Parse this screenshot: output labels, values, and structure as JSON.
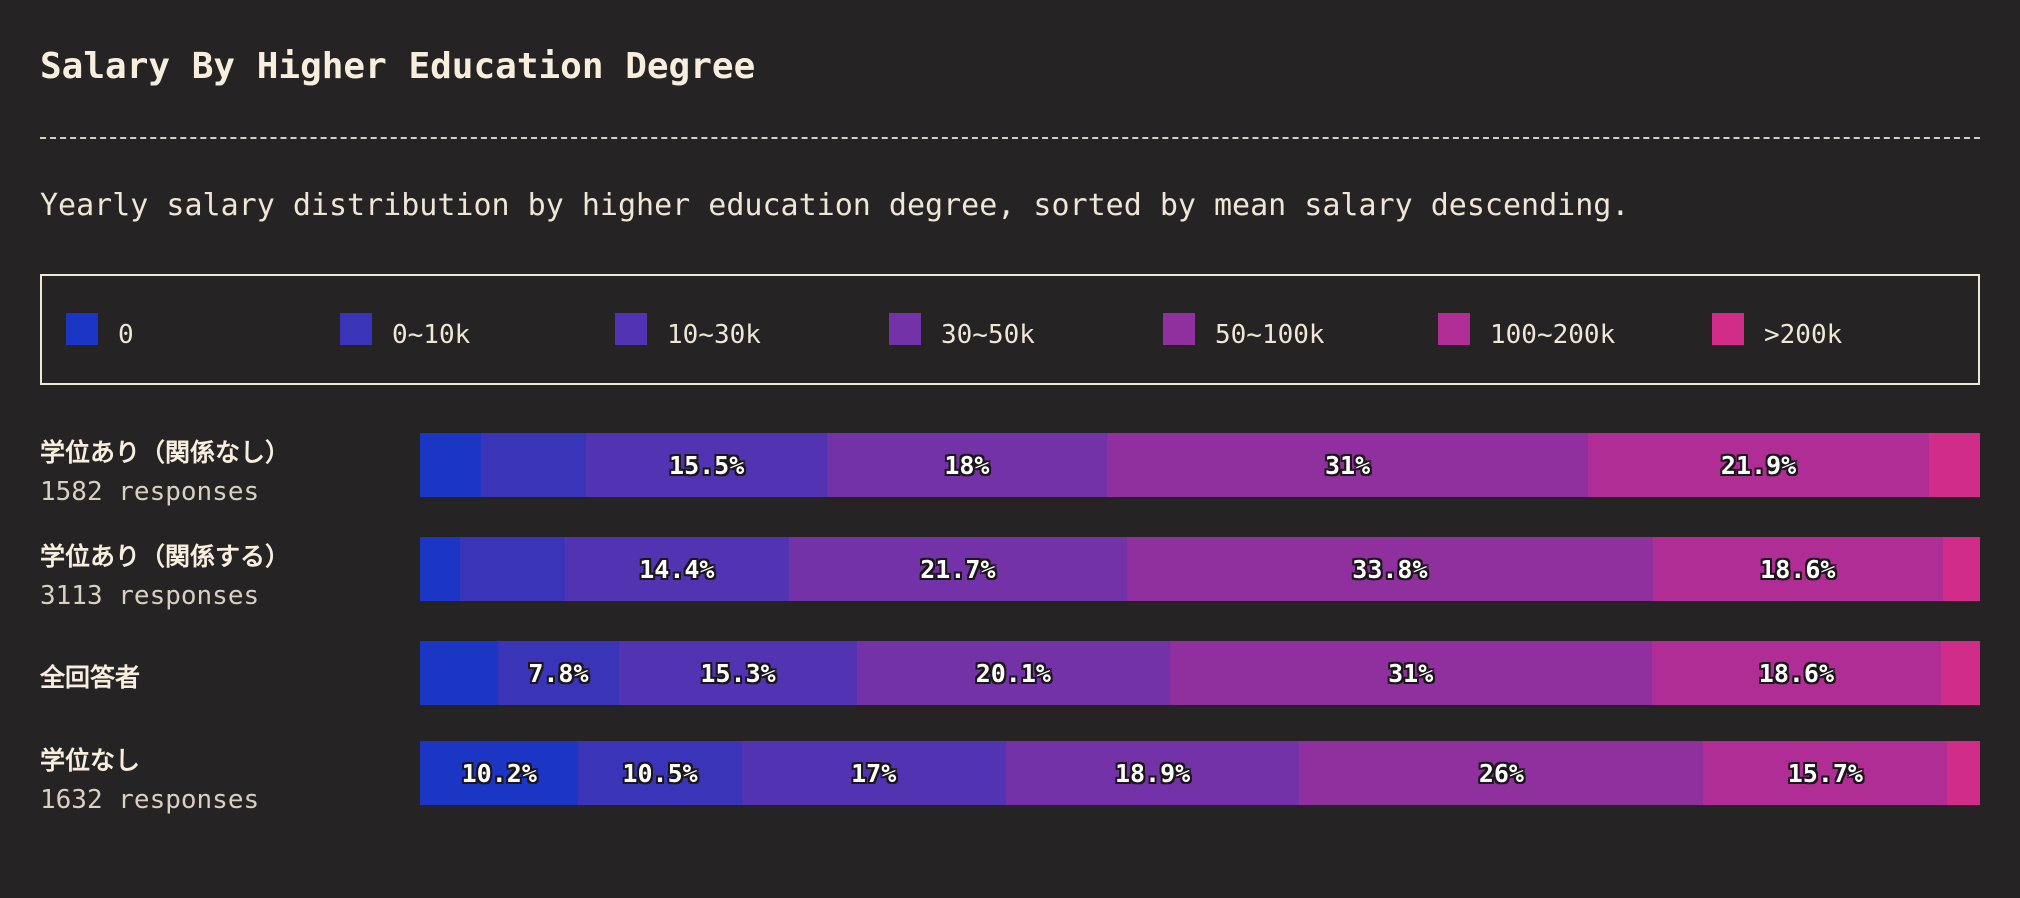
{
  "title": "Salary By Higher Education Degree",
  "subtitle": "Yearly salary distribution by higher education degree, sorted by mean salary descending.",
  "colors": {
    "background": "#262324",
    "text": "#f4ecd8",
    "border": "#efe7d6"
  },
  "chart_data": {
    "type": "bar",
    "stacked": true,
    "orientation": "horizontal",
    "normalized_percent": true,
    "title": "Salary By Higher Education Degree",
    "subtitle": "Yearly salary distribution by higher education degree, sorted by mean salary descending.",
    "legend_position": "top",
    "legend": [
      {
        "name": "0",
        "color": "#1b36c4"
      },
      {
        "name": "0~10k",
        "color": "#3a34b8"
      },
      {
        "name": "10~30k",
        "color": "#5233b2"
      },
      {
        "name": "30~50k",
        "color": "#7432a8"
      },
      {
        "name": "50~100k",
        "color": "#8f309e"
      },
      {
        "name": "100~200k",
        "color": "#b12d96"
      },
      {
        "name": ">200k",
        "color": "#d22c8b"
      }
    ],
    "categories": [
      "学位あり（関係なし）",
      "学位あり（関係する）",
      "全回答者",
      "学位なし"
    ],
    "rows": [
      {
        "name": "学位あり（関係なし）",
        "count_label": "1582 responses",
        "values": [
          3.9,
          6.8,
          15.5,
          18,
          31,
          21.9,
          3.3
        ],
        "labels": [
          "",
          "",
          "15.5%",
          "18%",
          "31%",
          "21.9%",
          ""
        ]
      },
      {
        "name": "学位あり（関係する）",
        "count_label": "3113 responses",
        "values": [
          2.6,
          6.7,
          14.4,
          21.7,
          33.8,
          18.6,
          2.4
        ],
        "labels": [
          "",
          "",
          "14.4%",
          "21.7%",
          "33.8%",
          "18.6%",
          ""
        ]
      },
      {
        "name": "全回答者",
        "count_label": "",
        "values": [
          5,
          7.8,
          15.3,
          20.1,
          31,
          18.6,
          2.5
        ],
        "labels": [
          "",
          "7.8%",
          "15.3%",
          "20.1%",
          "31%",
          "18.6%",
          ""
        ]
      },
      {
        "name": "学位なし",
        "count_label": "1632 responses",
        "values": [
          10.2,
          10.5,
          17,
          18.9,
          26,
          15.7,
          2.1
        ],
        "labels": [
          "10.2%",
          "10.5%",
          "17%",
          "18.9%",
          "26%",
          "15.7%",
          ""
        ]
      }
    ]
  }
}
